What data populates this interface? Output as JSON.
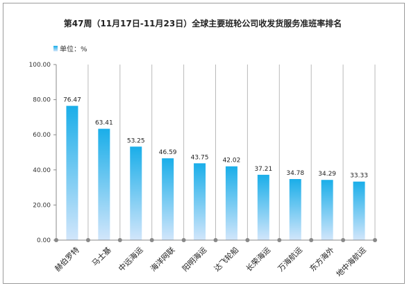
{
  "chart_data": {
    "type": "bar",
    "title": "第47周（11月17日-11月23日）全球主要班轮公司收发货服务准班率排名",
    "legend": "单位：%",
    "legend_position": "top-left",
    "categories": [
      "赫伯罗特",
      "马士基",
      "中远海运",
      "海洋网联",
      "阳明海运",
      "达飞轮船",
      "长荣海运",
      "万海航运",
      "东方海外",
      "地中海航运"
    ],
    "values": [
      76.47,
      63.41,
      53.25,
      46.59,
      43.75,
      42.02,
      37.21,
      34.78,
      34.29,
      33.33
    ],
    "value_labels": [
      "76.47",
      "63.41",
      "53.25",
      "46.59",
      "43.75",
      "42.02",
      "37.21",
      "34.78",
      "34.29",
      "33.33"
    ],
    "ylim": [
      0,
      100
    ],
    "yticks": [
      "0.00",
      "20.00",
      "40.00",
      "60.00",
      "80.00",
      "100.00"
    ],
    "grid": "vertical",
    "colors": {
      "bar_top": "#1aaee9",
      "bar_bottom": "#d2e6fb",
      "grid": "#b9b9b9",
      "axis": "#888888"
    }
  }
}
